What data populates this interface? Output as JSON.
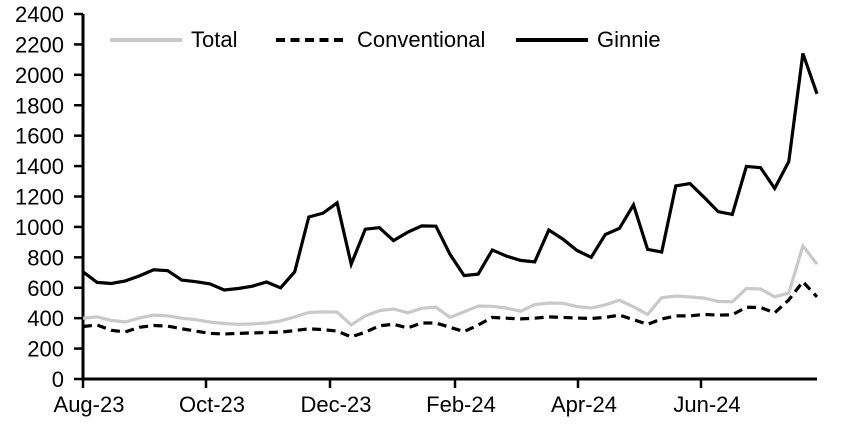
{
  "chart_data": {
    "type": "line",
    "title": "",
    "xlabel": "",
    "ylabel": "",
    "ylim": [
      0,
      2400
    ],
    "y_ticks": [
      0,
      200,
      400,
      600,
      800,
      1000,
      1200,
      1400,
      1600,
      1800,
      2000,
      2200,
      2400
    ],
    "x_tick_labels": [
      "Aug-23",
      "Oct-23",
      "Dec-23",
      "Feb-24",
      "Apr-24",
      "Jun-24"
    ],
    "x_frequency": "weekly",
    "grid": false,
    "legend_position": "top",
    "axis_color": "#000000",
    "series": [
      {
        "name": "Total",
        "color": "#c9c9c9",
        "dash": "solid",
        "values": [
          400,
          408,
          385,
          375,
          402,
          420,
          415,
          400,
          390,
          374,
          365,
          360,
          362,
          368,
          382,
          408,
          437,
          441,
          440,
          356,
          415,
          450,
          460,
          435,
          465,
          472,
          405,
          442,
          480,
          478,
          467,
          445,
          490,
          500,
          498,
          476,
          467,
          488,
          518,
          475,
          424,
          535,
          545,
          540,
          532,
          510,
          508,
          595,
          592,
          540,
          566,
          875,
          755
        ]
      },
      {
        "name": "Conventional",
        "color": "#000000",
        "dash": "dashed",
        "values": [
          345,
          355,
          320,
          310,
          340,
          352,
          348,
          330,
          315,
          300,
          296,
          300,
          303,
          305,
          308,
          318,
          330,
          325,
          315,
          277,
          308,
          350,
          360,
          336,
          368,
          368,
          340,
          312,
          355,
          405,
          400,
          395,
          400,
          408,
          405,
          401,
          398,
          405,
          420,
          390,
          360,
          395,
          415,
          415,
          425,
          420,
          422,
          472,
          470,
          435,
          520,
          640,
          540
        ]
      },
      {
        "name": "Ginnie",
        "color": "#000000",
        "dash": "solid",
        "values": [
          705,
          635,
          628,
          645,
          678,
          718,
          712,
          650,
          640,
          625,
          585,
          595,
          610,
          638,
          600,
          705,
          1065,
          1090,
          1158,
          755,
          985,
          995,
          910,
          965,
          1007,
          1005,
          820,
          680,
          690,
          848,
          808,
          780,
          770,
          980,
          920,
          845,
          800,
          950,
          990,
          1145,
          852,
          835,
          1270,
          1285,
          1195,
          1100,
          1082,
          1398,
          1390,
          1253,
          1430,
          2140,
          1875
        ]
      }
    ]
  }
}
